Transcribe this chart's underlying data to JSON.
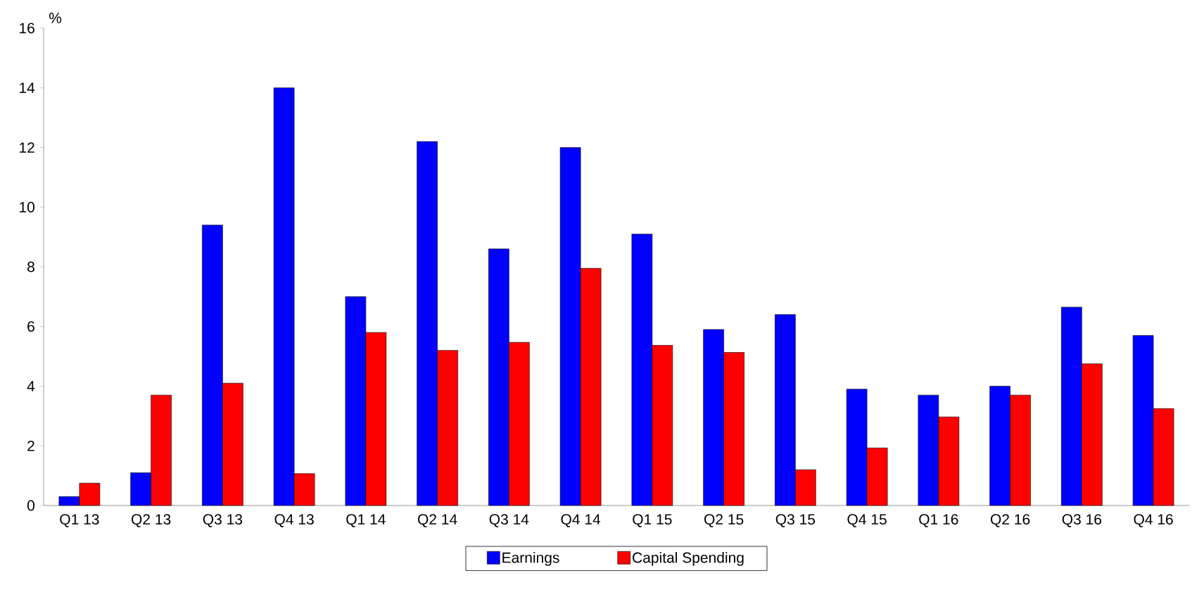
{
  "chart_data": {
    "type": "bar",
    "ylabel": "%",
    "categories": [
      "Q1 13",
      "Q2 13",
      "Q3 13",
      "Q4 13",
      "Q1 14",
      "Q2 14",
      "Q3 14",
      "Q4 14",
      "Q1 15",
      "Q2 15",
      "Q3 15",
      "Q4 15",
      "Q1 16",
      "Q2 16",
      "Q3 16",
      "Q4 16"
    ],
    "series": [
      {
        "name": "Earnings",
        "color": "#0000ff",
        "values": [
          0.3,
          1.1,
          9.4,
          14.0,
          7.0,
          12.2,
          8.6,
          12.0,
          9.1,
          5.9,
          6.4,
          3.9,
          3.7,
          4.0,
          6.65,
          5.7
        ]
      },
      {
        "name": "Capital Spending",
        "color": "#ff0000",
        "values": [
          0.75,
          3.7,
          4.1,
          1.07,
          5.8,
          5.2,
          5.47,
          7.95,
          5.37,
          5.13,
          1.2,
          1.93,
          2.97,
          3.7,
          4.75,
          3.25
        ]
      }
    ],
    "ylim": [
      0,
      16
    ],
    "yticks": [
      0,
      2,
      4,
      6,
      8,
      10,
      12,
      14,
      16
    ],
    "legend": "bottom"
  }
}
